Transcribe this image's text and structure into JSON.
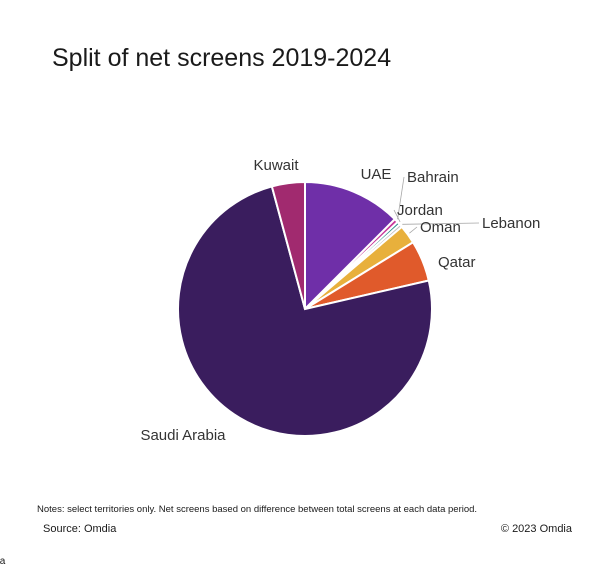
{
  "chart_data": {
    "type": "pie",
    "title": "Split of net screens 2019-2024",
    "categories": [
      "UAE",
      "Bahrain",
      "Jordan",
      "Lebanon",
      "Oman",
      "Qatar",
      "Saudi Arabia",
      "Kuwait"
    ],
    "values": [
      12.5,
      0.5,
      0.4,
      0.4,
      2.4,
      5.2,
      74.4,
      4.2
    ],
    "value_unit": "percent (estimated)",
    "colors": [
      "#6f2fa8",
      "#c9389a",
      "#2e8f8b",
      "#bfbfbf",
      "#e8b03c",
      "#e05a2b",
      "#3a1d5e",
      "#a12a6f"
    ],
    "start_angle": "12 o'clock",
    "direction": "clockwise",
    "slice_border": "#ffffff"
  },
  "footer": {
    "notes": "Notes: select territories only. Net screens based on difference between total screens at each data period.",
    "source": "Source: Omdia",
    "copyright": "© 2023 Omdia",
    "cut_text": "dia"
  }
}
